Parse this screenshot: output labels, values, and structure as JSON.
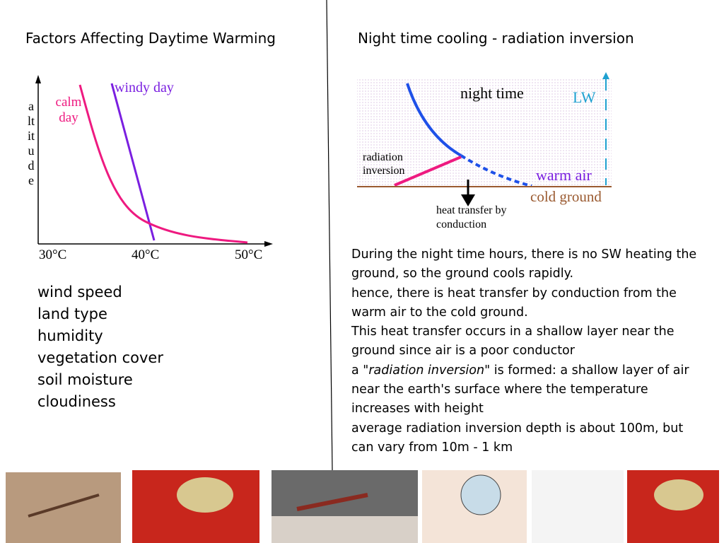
{
  "left": {
    "title": "Factors Affecting Daytime Warming",
    "diagram": {
      "y_label": "altitude",
      "windy_label": "windy day",
      "calm_label": "calm day",
      "x_labels": [
        "30°C",
        "40°C",
        "50°C"
      ]
    },
    "factors": [
      "wind speed",
      "land type",
      "humidity",
      "vegetation cover",
      "soil moisture",
      "cloudiness"
    ]
  },
  "right": {
    "title": "Night time cooling - radiation inversion",
    "diagram": {
      "night_label": "night time",
      "lw_label": "LW",
      "inversion_label": "radiation inversion",
      "warm_label": "warm air",
      "ground_label": "cold ground",
      "conduction_label": "heat transfer by conduction"
    },
    "paragraphs": [
      "During the night time hours, there is no SW heating the ground, so the ground cools rapidly.",
      "hence, there is heat transfer by conduction from the warm air to the cold ground.",
      "This heat transfer occurs in a shallow layer near the ground since air is a poor conductor",
      {
        "before": "a \"",
        "italic": "radiation inversion",
        "after": "\" is formed: a shallow layer of air near the earth's surface where the temperature increases with height"
      },
      "average radiation inversion depth is about 100m, but can vary from 10m - 1 km"
    ]
  }
}
